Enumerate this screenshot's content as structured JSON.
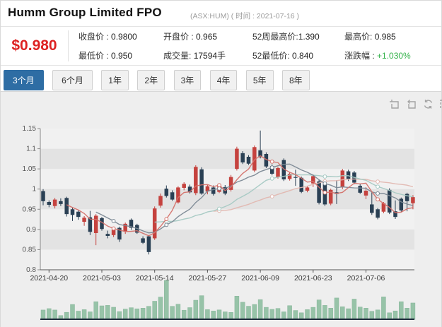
{
  "header": {
    "title": "Humm Group Limited FPO",
    "subtitle": "(ASX:HUM) ( 时间 : 2021-07-16 )"
  },
  "quote": {
    "price": "$0.980",
    "stats": [
      {
        "label": "收盘价 :",
        "value": "0.9800"
      },
      {
        "label": "开盘价 :",
        "value": "0.965"
      },
      {
        "label": "52周最高价:",
        "value": "1.390"
      },
      {
        "label": "最高价:",
        "value": "0.985"
      },
      {
        "label": "最低价 :",
        "value": "0.950"
      },
      {
        "label": "成交量:",
        "value": "17594手"
      },
      {
        "label": "52最低价:",
        "value": "0.840"
      },
      {
        "label": "涨跌幅 :",
        "value": "+1.030%",
        "positive": true
      }
    ]
  },
  "tabs": {
    "items": [
      {
        "label": "3个月",
        "active": true
      },
      {
        "label": "6个月",
        "active": false
      },
      {
        "label": "1年",
        "active": false
      },
      {
        "label": "2年",
        "active": false
      },
      {
        "label": "3年",
        "active": false
      },
      {
        "label": "4年",
        "active": false
      },
      {
        "label": "5年",
        "active": false
      },
      {
        "label": "8年",
        "active": false
      }
    ]
  },
  "toolbar": {
    "icons": [
      "box-zoom-icon",
      "zoom-back-icon",
      "refresh-pan-icon",
      "settings-icon"
    ]
  },
  "chart_data": {
    "type": "candlestick",
    "title": "",
    "ylim": [
      0.8,
      1.15
    ],
    "y_ticks": [
      "0.8",
      "0.85",
      "0.9",
      "0.95",
      "1",
      "1.05",
      "1.1",
      "1.15"
    ],
    "x_tick_indices": [
      1,
      10,
      19,
      28,
      37,
      46,
      55
    ],
    "x_tick_labels": [
      "2021-04-20",
      "2021-05-03",
      "2021-05-14",
      "2021-05-27",
      "2021-06-09",
      "2021-06-23",
      "2021-07-06"
    ],
    "grid": "alternating-bands",
    "legend": "none",
    "colors": {
      "up": "#c5423e",
      "down": "#2a4054",
      "volume": "#97c3a8",
      "volume_edge": "#88b69b",
      "band_light": "#f1f1f1",
      "band_dark": "#e3e3e3",
      "axis": "#8a8a8a",
      "baseline": "#1d2b3a",
      "tick_text": "#555",
      "date_text": "#3a3a3a"
    },
    "moving_averages": [
      {
        "name": "MA30",
        "window": 30,
        "color": "#e2b7b0"
      },
      {
        "name": "MA20",
        "window": 20,
        "color": "#a5c9c3"
      },
      {
        "name": "MA10",
        "window": 10,
        "color": "#7b8894"
      },
      {
        "name": "MA5",
        "window": 5,
        "color": "#d4716a"
      }
    ],
    "volume_max": 42000,
    "candles_columns": [
      "date",
      "open",
      "high",
      "low",
      "close",
      "volume"
    ],
    "candles": [
      [
        "2021-04-19",
        0.995,
        1.0,
        0.96,
        0.97,
        10000
      ],
      [
        "2021-04-20",
        0.968,
        0.972,
        0.955,
        0.961,
        11500
      ],
      [
        "2021-04-21",
        0.958,
        0.978,
        0.952,
        0.974,
        10000
      ],
      [
        "2021-04-22",
        0.97,
        0.977,
        0.958,
        0.963,
        4000
      ],
      [
        "2021-04-23",
        0.978,
        0.981,
        0.932,
        0.938,
        7500
      ],
      [
        "2021-04-26",
        0.95,
        0.954,
        0.921,
        0.936,
        16000
      ],
      [
        "2021-04-27",
        0.944,
        0.947,
        0.924,
        0.931,
        8800
      ],
      [
        "2021-04-28",
        0.919,
        0.933,
        0.909,
        0.929,
        10400
      ],
      [
        "2021-04-29",
        0.93,
        0.946,
        0.886,
        0.894,
        8000
      ],
      [
        "2021-04-30",
        0.891,
        0.938,
        0.861,
        0.934,
        19000
      ],
      [
        "2021-05-03",
        0.928,
        0.931,
        0.897,
        0.901,
        14500
      ],
      [
        "2021-05-04",
        0.889,
        0.897,
        0.878,
        0.884,
        15000
      ],
      [
        "2021-05-05",
        0.886,
        0.903,
        0.881,
        0.899,
        13000
      ],
      [
        "2021-05-06",
        0.904,
        0.907,
        0.869,
        0.875,
        8300
      ],
      [
        "2021-05-07",
        0.895,
        0.917,
        0.889,
        0.914,
        11000
      ],
      [
        "2021-05-10",
        0.924,
        0.927,
        0.899,
        0.904,
        12500
      ],
      [
        "2021-05-11",
        0.911,
        0.914,
        0.889,
        0.892,
        11300
      ],
      [
        "2021-05-12",
        0.878,
        0.883,
        0.864,
        0.867,
        12000
      ],
      [
        "2021-05-13",
        0.883,
        0.886,
        0.838,
        0.844,
        14000
      ],
      [
        "2021-05-14",
        0.878,
        0.957,
        0.874,
        0.952,
        19500
      ],
      [
        "2021-05-17",
        0.959,
        0.989,
        0.954,
        0.983,
        24000
      ],
      [
        "2021-05-18",
        1.001,
        1.009,
        0.979,
        0.983,
        42000
      ],
      [
        "2021-05-19",
        0.992,
        0.997,
        0.971,
        0.974,
        14000
      ],
      [
        "2021-05-20",
        0.967,
        1.007,
        0.964,
        1.004,
        16300
      ],
      [
        "2021-05-21",
        1.003,
        1.017,
        0.997,
        1.013,
        9800
      ],
      [
        "2021-05-24",
        1.006,
        1.011,
        0.989,
        0.992,
        12600
      ],
      [
        "2021-05-25",
        0.99,
        1.059,
        0.985,
        1.055,
        20600
      ],
      [
        "2021-05-26",
        1.049,
        1.054,
        0.986,
        0.989,
        25500
      ],
      [
        "2021-05-27",
        0.994,
        1.011,
        0.987,
        1.007,
        10400
      ],
      [
        "2021-05-28",
        1.004,
        1.009,
        0.984,
        0.988,
        8900
      ],
      [
        "2021-05-31",
        0.993,
        1.014,
        0.99,
        1.009,
        10100
      ],
      [
        "2021-06-01",
        1.005,
        1.01,
        0.985,
        0.989,
        8000
      ],
      [
        "2021-06-02",
        0.998,
        1.035,
        0.994,
        1.03,
        7400
      ],
      [
        "2021-06-03",
        1.05,
        1.105,
        1.046,
        1.1,
        25000
      ],
      [
        "2021-06-04",
        1.089,
        1.094,
        1.062,
        1.066,
        18400
      ],
      [
        "2021-06-07",
        1.08,
        1.084,
        1.06,
        1.063,
        14100
      ],
      [
        "2021-06-08",
        1.046,
        1.108,
        1.042,
        1.104,
        16000
      ],
      [
        "2021-06-09",
        1.096,
        1.145,
        1.076,
        1.079,
        21200
      ],
      [
        "2021-06-10",
        1.087,
        1.091,
        1.052,
        1.056,
        12900
      ],
      [
        "2021-06-11",
        1.057,
        1.061,
        1.034,
        1.038,
        10700
      ],
      [
        "2021-06-15",
        1.03,
        1.055,
        1.026,
        1.052,
        11700
      ],
      [
        "2021-06-16",
        1.072,
        1.076,
        1.02,
        1.024,
        8000
      ],
      [
        "2021-06-17",
        1.025,
        1.042,
        1.021,
        1.038,
        14700
      ],
      [
        "2021-06-18",
        1.03,
        1.048,
        1.008,
        1.028,
        9500
      ],
      [
        "2021-06-21",
        1.028,
        1.031,
        0.99,
        0.993,
        7000
      ],
      [
        "2021-06-22",
        0.996,
        1.008,
        0.992,
        1.004,
        10400
      ],
      [
        "2021-06-23",
        1.014,
        1.036,
        1.005,
        1.032,
        12900
      ],
      [
        "2021-06-24",
        1.019,
        1.023,
        0.962,
        0.966,
        20900
      ],
      [
        "2021-06-25",
        1.012,
        1.016,
        0.958,
        0.962,
        15000
      ],
      [
        "2021-06-28",
        0.964,
        1.001,
        0.96,
        0.998,
        12000
      ],
      [
        "2021-06-29",
        0.992,
        1.022,
        0.963,
        0.988,
        23000
      ],
      [
        "2021-06-30",
        1.005,
        1.05,
        1.0,
        1.046,
        13500
      ],
      [
        "2021-07-01",
        1.044,
        1.048,
        1.02,
        1.024,
        11400
      ],
      [
        "2021-07-02",
        1.041,
        1.045,
        1.012,
        1.016,
        21800
      ],
      [
        "2021-07-05",
        1.008,
        1.012,
        0.988,
        0.991,
        13200
      ],
      [
        "2021-07-06",
        0.984,
        1.005,
        0.975,
        0.996,
        12000
      ],
      [
        "2021-07-07",
        0.962,
        0.992,
        0.936,
        0.941,
        8600
      ],
      [
        "2021-07-08",
        0.95,
        0.953,
        0.925,
        0.929,
        10100
      ],
      [
        "2021-07-09",
        0.944,
        0.968,
        0.94,
        0.965,
        24200
      ],
      [
        "2021-07-12",
        0.998,
        1.002,
        0.938,
        0.942,
        7000
      ],
      [
        "2021-07-13",
        0.945,
        0.972,
        0.926,
        0.931,
        9000
      ],
      [
        "2021-07-14",
        0.976,
        0.979,
        0.943,
        0.947,
        19000
      ],
      [
        "2021-07-15",
        0.988,
        0.991,
        0.945,
        0.97,
        12000
      ],
      [
        "2021-07-16",
        0.965,
        0.985,
        0.95,
        0.98,
        17594
      ]
    ]
  }
}
